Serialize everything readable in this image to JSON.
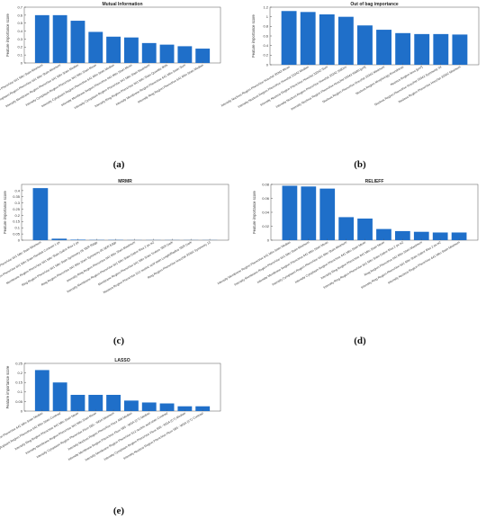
{
  "colors": {
    "bar": "#1f6fc9",
    "axis": "#555555",
    "grid": "#e6e6e6"
  },
  "panel_labels": [
    "(a)",
    "(b)",
    "(c)",
    "(d)",
    "(e)"
  ],
  "chart_data": [
    {
      "type": "bar",
      "title": "Mutual Information",
      "ylabel": "Feature importance score",
      "xlabel": "",
      "ylim": [
        0,
        0.7
      ],
      "yticks": [
        0,
        0.1,
        0.2,
        0.3,
        0.4,
        0.5,
        0.6,
        0.7
      ],
      "categories": [
        "Intensity Membrane Region PhenoVue 641 Mito Stain Minimum",
        "Intensity Cytoplasm Region PhenoVue 641 Mito Stain Minimum",
        "Intensity Membrane Region PhenoVue 641 Mito Stain Median",
        "Intensity Cytoplasm Region PhenoVue 641 Mito Stain Mean",
        "Intensity Cytoplasm Region PhenoVue 641 Mito Stain Median",
        "Intensity Membrane Region PhenoVue 641 Mito Stain Mean",
        "Intensity Cytoplasm Region PhenoVue 641 Mito Stain Maximum",
        "Intensity Ring Region PhenoVue 641 Mito Stain Quantile 80%",
        "Intensity Membrane Region PhenoVue 641 Mito Stain Sum",
        "Intensity Ring Region PhenoVue 641 Mito Stain Median"
      ],
      "values": [
        0.6,
        0.6,
        0.53,
        0.39,
        0.33,
        0.32,
        0.25,
        0.23,
        0.21,
        0.18
      ],
      "grid": false
    },
    {
      "type": "bar",
      "title": "Out of bag importance",
      "ylabel": "Feature importance score",
      "xlabel": "",
      "ylim": [
        0,
        1.2
      ],
      "yticks": [
        0,
        0.2,
        0.4,
        0.6,
        0.8,
        1,
        1.2
      ],
      "categories": [
        "Intensity Nucleus Region PhenoVue Hoechst 33342 Mean",
        "Intensity Nucleus Region PhenoVue Hoechst 33342 Median",
        "Intensity Nucleus Region PhenoVue Hoechst 33342 Sum",
        "Intensity Nucleus Region PhenoVue Hoechst 33342 StdDev",
        "Intensity Nucleus Region PhenoVue Hoechst 33342 Width [μm]",
        "Nucleus Region PhenoVue Hoechst 33342 Minimum",
        "Nucleus Region Morphology Roundness",
        "Nucleus Region Area [μm²]",
        "Nucleus Region PhenoVue Hoechst 33342 Symmetry 04",
        "Nucleus Region PhenoVue Hoechst 33342 Minimum"
      ],
      "values": [
        1.12,
        1.1,
        1.05,
        1.0,
        0.82,
        0.73,
        0.66,
        0.64,
        0.64,
        0.63
      ],
      "grid": false
    },
    {
      "type": "bar",
      "title": "MRMR",
      "ylabel": "Feature importance score",
      "xlabel": "",
      "ylim": [
        0,
        0.45
      ],
      "yticks": [
        0,
        0.05,
        0.1,
        0.15,
        0.2,
        0.25,
        0.3,
        0.35,
        0.4
      ],
      "categories": [
        "Intensity Membrane Region PhenoVue 641 Mito Stain Minimum",
        "Membrane Region PhenoVue 641 Mito Stain Haralick Contrast 1 px",
        "Membrane Region PhenoVue 641 Mito Stain Gabor Max 2 px",
        "Ring Region PhenoVue 641 Mito Stain Symmetry 05 SER Ridge",
        "Ring Region PhenoVue 641 Mito Stain Symmetry 05 SER Edge",
        "Intensity Ring Region PhenoVue 641 Mito Stain Maximum",
        "Intensity Membrane Region PhenoVue 641 Mito Stain Gabor Max 2 px w2",
        "Membrane Region PhenoVue 641 Mito Stain Texture SER Dark",
        "Nucleus Region PhenoVue 512 nucleic acid stain Length/Radius SER Dark",
        "Ring Region PhenoVue Hoechst 33342 Symmetry 13"
      ],
      "values": [
        0.42,
        0.012,
        0.004,
        0.002,
        0.002,
        0.001,
        0.001,
        0.001,
        0.001,
        0.001
      ],
      "grid": false
    },
    {
      "type": "bar",
      "title": "RELIEFF",
      "ylabel": "Feature importance score",
      "xlabel": "",
      "ylim": [
        0,
        0.08
      ],
      "yticks": [
        0,
        0.02,
        0.04,
        0.06,
        0.08
      ],
      "categories": [
        "Intensity Membrane Region PhenoVue 641 Mito Stain Median",
        "Intensity Membrane Region PhenoVue 641 Mito Stain Minimum",
        "Intensity Membrane Region PhenoVue 641 Mito Stain Mean",
        "Intensity Cytoplasm Region PhenoVue 641 Mito Stain Minimum",
        "Intensity Cytoplasm Region PhenoVue 641 Mito Stain Mean",
        "Intensity Ring Region PhenoVue 641 Mito Stain Mean",
        "Intensity Ring Region PhenoVue 641 Mito Stain Gabor Max 2 px w2",
        "Ring Region PhenoVue 641 Mito Stain Maximum",
        "Intensity Ring Region PhenoVue 641 Mito Stain Gabor Max 2 px w2",
        "Intensity Nucleus Region PhenoVue 641 Mito Stain Minimum"
      ],
      "values": [
        0.078,
        0.077,
        0.074,
        0.033,
        0.031,
        0.016,
        0.013,
        0.012,
        0.011,
        0.011
      ],
      "grid": false
    },
    {
      "type": "bar",
      "title": "LASSO",
      "ylabel": "Feature importance score",
      "xlabel": "",
      "ylim": [
        0,
        0.25
      ],
      "yticks": [
        0,
        0.05,
        0.1,
        0.15,
        0.2,
        0.25
      ],
      "categories": [
        "Intensity Membrane Region PhenoVue 641 Mito Stain Median",
        "Intensity Cytoplasm Region PhenoVue 641 Mito Stain Contrast",
        "Intensity Ring Region PhenoVue 641 Mito Stain Mean",
        "Intensity Membrane Region PhenoVue 641 Mito Stain Mean",
        "Intensity Cytoplasm Region PhenoVue Fluor 555 - WGA Minimum",
        "Intensity Nucleus Region PhenoVue Fluor 488 Median",
        "Intensity Membrane Region PhenoVue Fluor 555 - WGA (CT) Median",
        "Intensity Membrane Region PhenoVue 512 nucleic acid stain Contrast",
        "Intensity Cytoplasm Region PhenoVue Fluor 555 - WGA (CT) Median",
        "Intensity Nucleus Region PhenoVue Fluor 555 - WGA (CT) Contrast"
      ],
      "values": [
        0.215,
        0.15,
        0.085,
        0.085,
        0.085,
        0.055,
        0.045,
        0.04,
        0.025,
        0.025
      ],
      "grid": false
    }
  ]
}
